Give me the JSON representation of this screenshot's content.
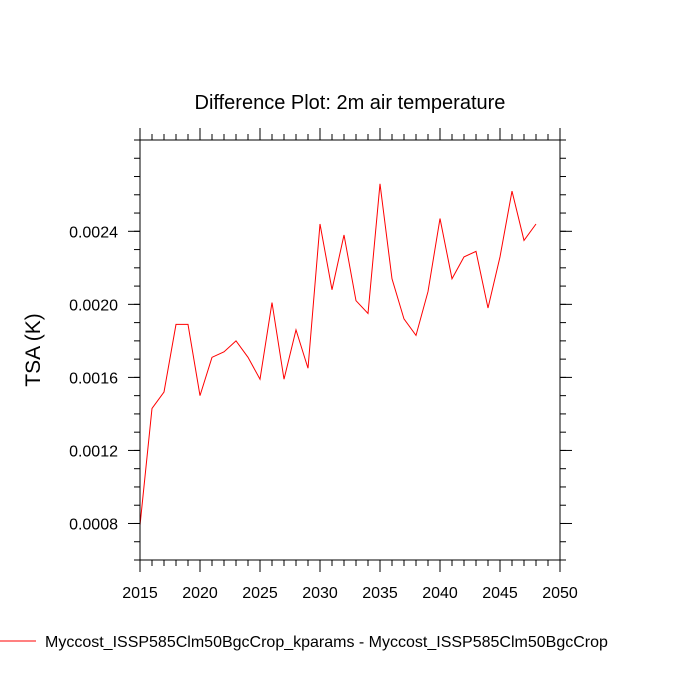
{
  "chart_data": {
    "type": "line",
    "title": "Difference Plot: 2m air temperature",
    "xlabel": "",
    "ylabel": "TSA  (K)",
    "xlim": [
      2015,
      2050
    ],
    "ylim": [
      0.0006,
      0.0029
    ],
    "x_major_ticks": [
      2015,
      2020,
      2025,
      2030,
      2035,
      2040,
      2045,
      2050
    ],
    "x_minor_step": 1,
    "y_major_ticks": [
      0.0008,
      0.0012,
      0.0016,
      0.002,
      0.0024
    ],
    "y_tick_labels": [
      "0.0008",
      "0.0012",
      "0.0016",
      "0.0020",
      "0.0024"
    ],
    "y_minor_step": 0.0001,
    "grid": false,
    "legend_position": "bottom",
    "series": [
      {
        "name": "Myccost_ISSP585Clm50BgcCrop_kparams - Myccost_ISSP585Clm50BgcCrop",
        "color": "#ff0000",
        "x": [
          2015,
          2016,
          2017,
          2018,
          2019,
          2020,
          2021,
          2022,
          2023,
          2024,
          2025,
          2026,
          2027,
          2028,
          2029,
          2030,
          2031,
          2032,
          2033,
          2034,
          2035,
          2036,
          2037,
          2038,
          2039,
          2040,
          2041,
          2042,
          2043,
          2044,
          2045,
          2046,
          2047,
          2048
        ],
        "values": [
          0.00079,
          0.00143,
          0.00152,
          0.00189,
          0.00189,
          0.0015,
          0.00171,
          0.00174,
          0.0018,
          0.00171,
          0.00159,
          0.00201,
          0.00159,
          0.00186,
          0.00165,
          0.00244,
          0.00208,
          0.00238,
          0.00202,
          0.00195,
          0.00266,
          0.00214,
          0.00192,
          0.00183,
          0.00207,
          0.00247,
          0.00214,
          0.00226,
          0.00229,
          0.00198,
          0.00226,
          0.00262,
          0.00235,
          0.00244
        ]
      }
    ]
  }
}
